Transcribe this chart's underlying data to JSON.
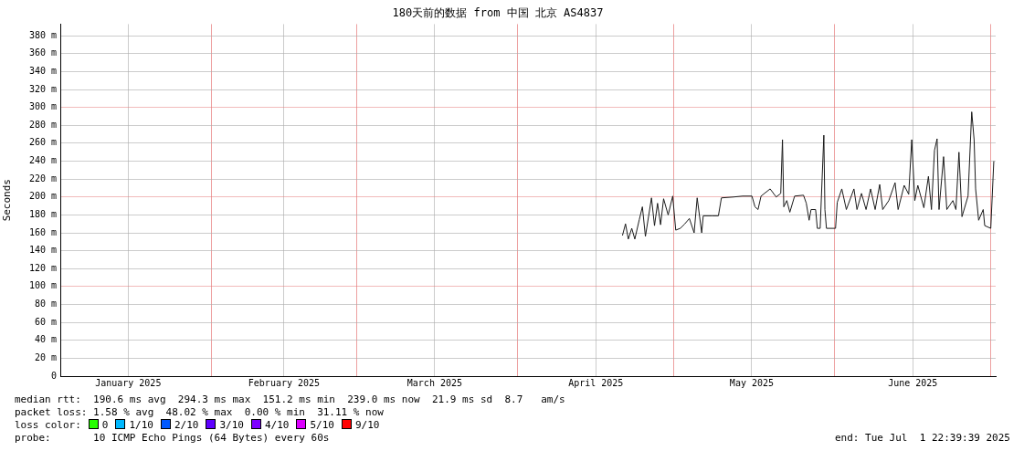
{
  "chart_data": {
    "type": "line",
    "title": "180天前的数据 from 中国 北京 AS4837",
    "ylabel": "Seconds",
    "xlim": [
      "2025-01-02T22:39",
      "2025-07-01T22:39"
    ],
    "xticks": [
      {
        "value": "2025-01-16",
        "label": "January 2025"
      },
      {
        "value": "2025-02-01",
        "label": null
      },
      {
        "value": "2025-02-15",
        "label": "February 2025"
      },
      {
        "value": "2025-03-01",
        "label": null
      },
      {
        "value": "2025-03-16",
        "label": "March 2025"
      },
      {
        "value": "2025-04-01",
        "label": null
      },
      {
        "value": "2025-04-16",
        "label": "April 2025"
      },
      {
        "value": "2025-05-01",
        "label": null
      },
      {
        "value": "2025-05-16",
        "label": "May 2025"
      },
      {
        "value": "2025-06-01",
        "label": null
      },
      {
        "value": "2025-06-16",
        "label": "June 2025"
      },
      {
        "value": "2025-07-01",
        "label": null
      }
    ],
    "ylim": [
      0,
      393
    ],
    "yticks": [
      0,
      {
        "value": 20,
        "label": "20 m"
      },
      {
        "value": 40,
        "label": "40 m"
      },
      {
        "value": 60,
        "label": "60 m"
      },
      {
        "value": 80,
        "label": "80 m"
      },
      {
        "value": 100,
        "label": "100 m"
      },
      {
        "value": 120,
        "label": "120 m"
      },
      {
        "value": 140,
        "label": "140 m"
      },
      {
        "value": 160,
        "label": "160 m"
      },
      {
        "value": 180,
        "label": "180 m"
      },
      {
        "value": 200,
        "label": "200 m"
      },
      {
        "value": 220,
        "label": "220 m"
      },
      {
        "value": 240,
        "label": "240 m"
      },
      {
        "value": 260,
        "label": "260 m"
      },
      {
        "value": 280,
        "label": "280 m"
      },
      {
        "value": 300,
        "label": "300 m"
      },
      {
        "value": 320,
        "label": "320 m"
      },
      {
        "value": 340,
        "label": "340 m"
      },
      {
        "value": 360,
        "label": "360 m"
      },
      {
        "value": 380,
        "label": "380 m"
      }
    ],
    "grid": true,
    "legend": "bottom",
    "x": [
      "2025-04-21T03:00",
      "2025-04-21T17:00",
      "2025-04-22T06:00",
      "2025-04-22T22:00",
      "2025-04-23T12:00",
      "2025-04-24T09:00",
      "2025-04-24T23:00",
      "2025-04-25T13:00",
      "2025-04-26T17:00",
      "2025-04-27T07:00",
      "2025-04-27T21:00",
      "2025-04-28T11:00",
      "2025-04-29T01:00",
      "2025-04-29T22:00",
      "2025-04-30T19:00",
      "2025-05-01T09:00",
      "2025-05-02T06:00",
      "2025-05-03T03:00",
      "2025-05-04T00:00",
      "2025-05-04T22:00",
      "2025-05-05T12:00",
      "2025-05-06T09:00",
      "2025-05-06T16:00",
      "2025-05-08T10:00",
      "2025-05-09T14:00",
      "2025-05-10T04:00",
      "2025-05-12T12:00",
      "2025-05-14T06:00",
      "2025-05-16T01:00",
      "2025-05-16T15:00",
      "2025-05-17T05:00",
      "2025-05-17T19:00",
      "2025-05-19T13:00",
      "2025-05-20T17:00",
      "2025-05-21T14:00",
      "2025-05-21T22:00",
      "2025-05-22T04:00",
      "2025-05-22T18:00",
      "2025-05-23T08:00",
      "2025-05-24T06:00",
      "2025-05-25T23:00",
      "2025-05-26T12:00",
      "2025-05-27T01:00",
      "2025-05-27T10:00",
      "2025-05-28T07:00",
      "2025-05-28T15:00",
      "2025-05-29T04:00",
      "2025-05-29T21:00",
      "2025-05-30T02:00",
      "2025-05-30T09:00",
      "2025-06-01T03:00",
      "2025-06-01T11:00",
      "2025-06-02T08:00",
      "2025-06-03T05:00",
      "2025-06-04T16:00",
      "2025-06-05T06:00",
      "2025-06-06T03:00",
      "2025-06-07T00:00",
      "2025-06-07T21:00",
      "2025-06-08T18:00",
      "2025-06-09T15:00",
      "2025-06-10T05:00",
      "2025-06-11T09:00",
      "2025-06-12T14:00",
      "2025-06-13T04:00",
      "2025-06-14T08:00",
      "2025-06-15T05:00",
      "2025-06-15T19:00",
      "2025-06-16T09:00",
      "2025-06-16T23:00",
      "2025-06-18T03:00",
      "2025-06-19T00:00",
      "2025-06-19T14:00",
      "2025-06-20T04:00",
      "2025-06-20T16:00",
      "2025-06-21T01:00",
      "2025-06-21T22:00",
      "2025-06-22T13:00",
      "2025-06-23T17:00",
      "2025-06-24T07:00",
      "2025-06-24T21:00",
      "2025-06-25T11:00",
      "2025-06-26T15:00",
      "2025-06-27T08:00",
      "2025-06-27T19:00",
      "2025-06-28T02:00",
      "2025-06-28T16:00",
      "2025-06-29T13:00",
      "2025-06-29T20:00",
      "2025-07-01T00:00",
      "2025-07-01T14:00"
    ],
    "series": [
      {
        "color": "#1a1a1a",
        "values": [
          157,
          170,
          153,
          165,
          153,
          175,
          189,
          156,
          199,
          168,
          193,
          169,
          198,
          180,
          201,
          163,
          165,
          170,
          176,
          160,
          199,
          160,
          179,
          179,
          179,
          199,
          200,
          201,
          201,
          189,
          186,
          201,
          209,
          200,
          204,
          264,
          189,
          196,
          183,
          201,
          202,
          193,
          174,
          186,
          186,
          165,
          165,
          269,
          186,
          165,
          165,
          194,
          209,
          186,
          209,
          186,
          204,
          186,
          209,
          186,
          214,
          186,
          196,
          216,
          186,
          213,
          203,
          264,
          196,
          213,
          188,
          223,
          186,
          252,
          265,
          186,
          245,
          186,
          196,
          186,
          250,
          178,
          201,
          295,
          264,
          209,
          174,
          186,
          168,
          165,
          240
        ]
      },
      {
        "name": "0",
        "color": "#26ff00",
        "values": [
          null,
          null,
          null,
          null,
          null,
          null,
          null,
          null,
          null,
          null,
          null,
          null,
          null,
          null,
          null,
          null,
          null,
          null,
          null,
          null,
          null,
          null,
          null,
          null,
          null,
          null,
          null,
          null,
          null,
          null,
          null,
          null,
          null,
          null,
          null,
          null,
          null,
          null,
          null,
          null,
          null,
          null,
          null,
          null,
          null,
          null,
          null,
          null,
          null,
          null,
          null,
          null,
          null,
          null,
          null,
          null,
          null,
          null,
          null,
          null,
          null,
          null,
          null,
          null,
          null,
          null,
          null,
          null,
          null,
          null,
          null,
          null,
          null,
          null,
          null,
          null,
          null,
          null,
          null,
          null,
          null,
          null,
          null,
          null,
          null,
          null,
          null,
          null,
          null,
          null,
          null
        ]
      },
      {
        "name": "1/10",
        "color": "#00b8ff",
        "values": [
          null,
          null,
          null,
          null,
          null,
          null,
          null,
          null,
          null,
          null,
          null,
          null,
          null,
          null,
          null,
          null,
          null,
          null,
          null,
          null,
          null,
          null,
          null,
          null,
          null,
          null,
          null,
          null,
          null,
          null,
          null,
          null,
          null,
          null,
          null,
          null,
          null,
          null,
          null,
          null,
          null,
          null,
          null,
          null,
          null,
          null,
          null,
          null,
          null,
          null,
          null,
          null,
          null,
          null,
          null,
          null,
          null,
          null,
          null,
          null,
          null,
          null,
          null,
          null,
          null,
          null,
          null,
          null,
          null,
          null,
          null,
          null,
          null,
          null,
          null,
          null,
          null,
          null,
          null,
          null,
          null,
          null,
          null,
          null,
          null,
          null,
          null,
          null,
          null,
          null,
          null
        ]
      },
      {
        "name": "2/10",
        "color": "#0059ff",
        "values": [
          null,
          null,
          null,
          null,
          null,
          null,
          null,
          null,
          null,
          null,
          null,
          null,
          null,
          null,
          null,
          null,
          null,
          null,
          null,
          null,
          null,
          null,
          null,
          null,
          null,
          null,
          null,
          null,
          null,
          null,
          null,
          null,
          null,
          null,
          null,
          null,
          null,
          null,
          null,
          null,
          null,
          null,
          null,
          null,
          null,
          null,
          null,
          null,
          null,
          null,
          null,
          null,
          null,
          null,
          null,
          null,
          null,
          null,
          null,
          null,
          null,
          null,
          null,
          null,
          null,
          null,
          null,
          null,
          null,
          null,
          null,
          null,
          null,
          null,
          null,
          null,
          null,
          null,
          null,
          null,
          null,
          null,
          null,
          null,
          null,
          null,
          null,
          null,
          null,
          null,
          null
        ]
      },
      {
        "name": "3/10",
        "color": "#5e00ff",
        "values": [
          null,
          null,
          null,
          null,
          null,
          null,
          null,
          null,
          null,
          null,
          null,
          null,
          null,
          null,
          null,
          null,
          null,
          null,
          null,
          null,
          null,
          null,
          null,
          null,
          null,
          null,
          null,
          null,
          null,
          null,
          null,
          null,
          null,
          null,
          null,
          null,
          null,
          null,
          null,
          null,
          null,
          null,
          null,
          null,
          null,
          null,
          null,
          null,
          null,
          null,
          null,
          null,
          null,
          null,
          null,
          null,
          null,
          null,
          null,
          null,
          null,
          null,
          null,
          null,
          null,
          null,
          null,
          null,
          null,
          null,
          null,
          null,
          null,
          null,
          null,
          null,
          null,
          null,
          null,
          null,
          null,
          null,
          null,
          null,
          null,
          null,
          null,
          null,
          null,
          null,
          null
        ]
      },
      {
        "name": "4/10",
        "color": "#7e00ff",
        "values": [
          null,
          null,
          null,
          null,
          null,
          null,
          null,
          null,
          null,
          null,
          null,
          null,
          null,
          null,
          null,
          null,
          null,
          null,
          null,
          null,
          null,
          null,
          null,
          null,
          null,
          null,
          null,
          null,
          null,
          null,
          null,
          null,
          null,
          null,
          null,
          null,
          null,
          null,
          null,
          null,
          null,
          null,
          null,
          null,
          null,
          null,
          null,
          null,
          null,
          null,
          null,
          null,
          null,
          null,
          null,
          null,
          null,
          null,
          null,
          null,
          null,
          null,
          null,
          null,
          null,
          null,
          null,
          null,
          null,
          null,
          null,
          null,
          null,
          null,
          null,
          null,
          null,
          null,
          null,
          null,
          null,
          null,
          null,
          null,
          null,
          null,
          null,
          null,
          null,
          null,
          null
        ]
      },
      {
        "name": "5/10",
        "color": "#dd00ff",
        "values": [
          null,
          null,
          null,
          null,
          null,
          null,
          null,
          null,
          null,
          null,
          null,
          null,
          null,
          null,
          null,
          null,
          null,
          null,
          null,
          null,
          null,
          null,
          null,
          null,
          null,
          null,
          null,
          null,
          null,
          null,
          null,
          null,
          null,
          null,
          null,
          null,
          null,
          null,
          null,
          null,
          null,
          null,
          null,
          null,
          null,
          null,
          null,
          null,
          null,
          null,
          null,
          null,
          null,
          null,
          null,
          null,
          null,
          null,
          null,
          null,
          null,
          null,
          null,
          null,
          null,
          null,
          null,
          null,
          null,
          null,
          null,
          null,
          null,
          null,
          null,
          null,
          null,
          null,
          null,
          null,
          null,
          null,
          null,
          null,
          null,
          null,
          null,
          null,
          null,
          null,
          null
        ]
      },
      {
        "name": "9/10",
        "color": "#ff0000",
        "values": [
          null,
          null,
          null,
          null,
          null,
          null,
          null,
          null,
          null,
          null,
          null,
          null,
          null,
          null,
          null,
          null,
          null,
          null,
          null,
          null,
          null,
          null,
          null,
          null,
          null,
          null,
          null,
          null,
          null,
          null,
          null,
          null,
          null,
          null,
          null,
          null,
          null,
          null,
          null,
          null,
          null,
          null,
          null,
          null,
          null,
          null,
          null,
          null,
          null,
          null,
          null,
          null,
          null,
          null,
          null,
          null,
          null,
          null,
          null,
          null,
          null,
          null,
          null,
          null,
          null,
          null,
          null,
          null,
          null,
          null,
          null,
          null,
          null,
          null,
          null,
          null,
          null,
          null,
          null,
          null,
          null,
          null,
          null,
          null,
          null,
          null,
          null,
          null,
          null,
          null,
          null
        ]
      }
    ],
    "annotations": [
      "median rtt:  190.6 ms avg  294.3 ms max  151.2 ms min  239.0 ms now  21.9 ms sd  8.7   am/s",
      "packet loss: 1.58 % avg  48.02 % max  0.00 % min  31.11 % now",
      "loss color:",
      "probe:       10 ICMP Echo Pings (64 Bytes) every 60s",
      "end: Tue Jul  1 22:39:39 2025"
    ]
  }
}
